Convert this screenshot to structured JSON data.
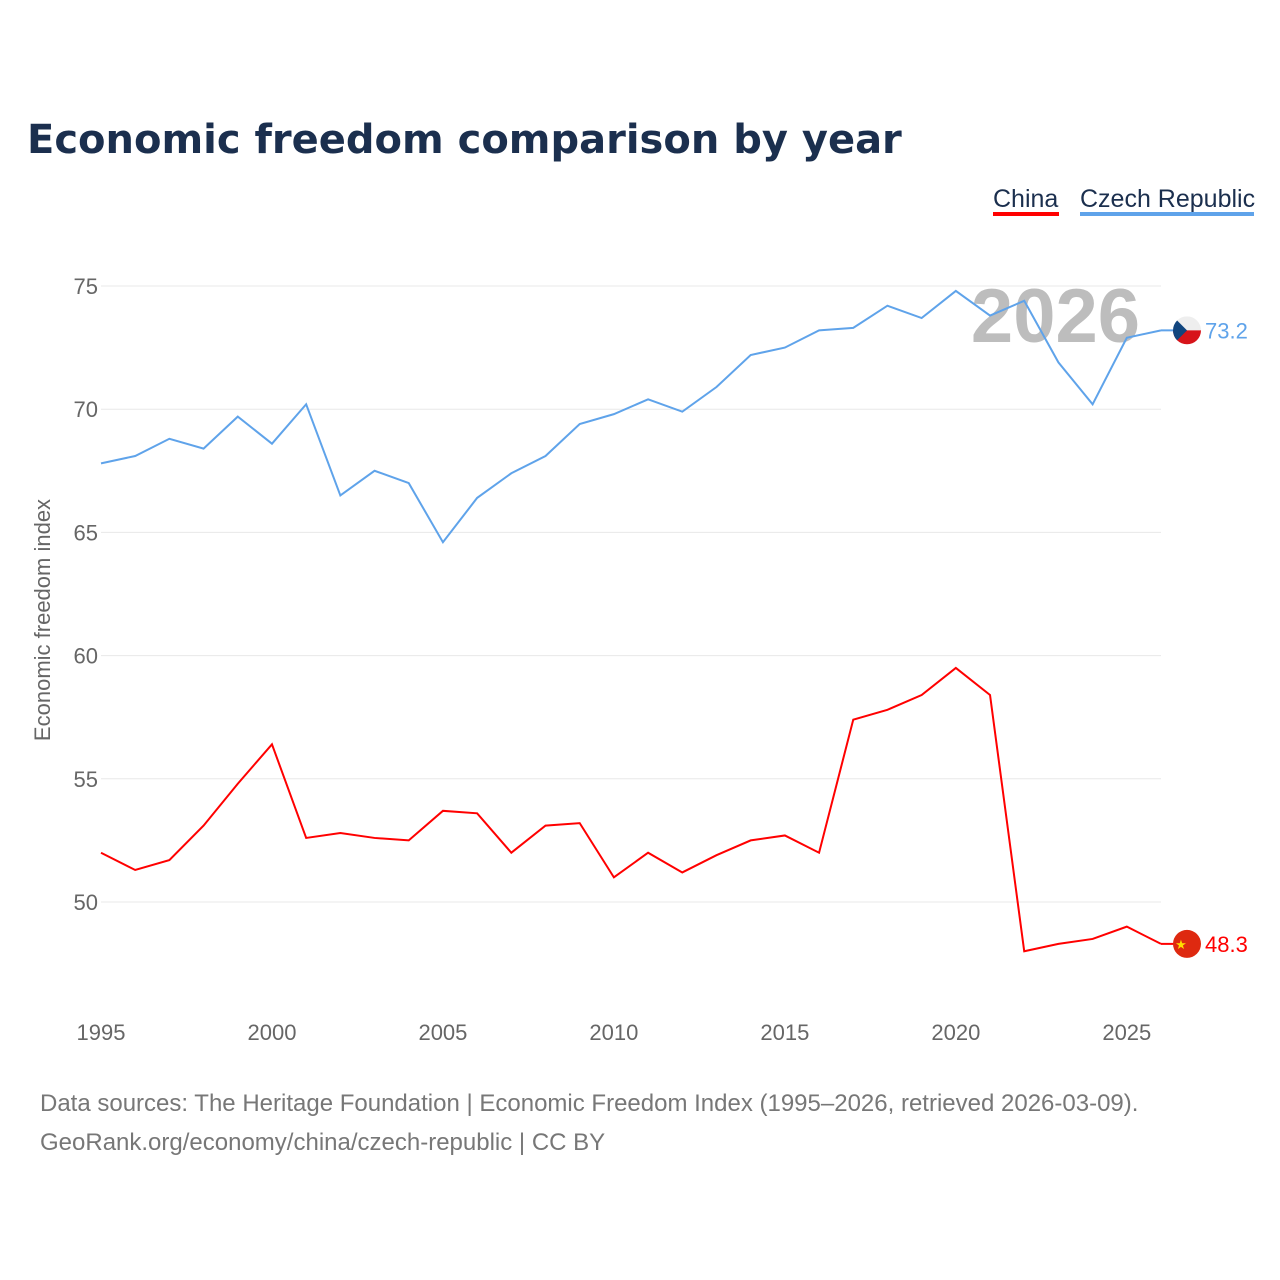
{
  "chart_data": {
    "type": "line",
    "title": "Economic freedom comparison by year",
    "xlabel": "",
    "ylabel": "Economic freedom index",
    "xlim": [
      1995,
      2026
    ],
    "ylim": [
      45.5,
      77
    ],
    "yticks": [
      50,
      55,
      60,
      65,
      70,
      75
    ],
    "xticks": [
      1995,
      2000,
      2005,
      2010,
      2015,
      2020,
      2025
    ],
    "grid": true,
    "legend_placement": "top-right",
    "watermark_year": "2026",
    "x": [
      1995,
      1996,
      1997,
      1998,
      1999,
      2000,
      2001,
      2002,
      2003,
      2004,
      2005,
      2006,
      2007,
      2008,
      2009,
      2010,
      2011,
      2012,
      2013,
      2014,
      2015,
      2016,
      2017,
      2018,
      2019,
      2020,
      2021,
      2022,
      2023,
      2024,
      2025,
      2026
    ],
    "series": [
      {
        "name": "China",
        "color": "#ff0000",
        "end_label": "48.3",
        "values": [
          52.0,
          51.3,
          51.7,
          53.1,
          54.8,
          56.4,
          52.6,
          52.8,
          52.6,
          52.5,
          53.7,
          53.6,
          52.0,
          53.1,
          53.2,
          51.0,
          52.0,
          51.2,
          51.9,
          52.5,
          52.7,
          52.0,
          57.4,
          57.8,
          58.4,
          59.5,
          58.4,
          48.0,
          48.3,
          48.5,
          49.0,
          48.3
        ]
      },
      {
        "name": "Czech Republic",
        "color": "#5fa3ea",
        "end_label": "73.2",
        "values": [
          67.8,
          68.1,
          68.8,
          68.4,
          69.7,
          68.6,
          70.2,
          66.5,
          67.5,
          67.0,
          64.6,
          66.4,
          67.4,
          68.1,
          69.4,
          69.8,
          70.4,
          69.9,
          70.9,
          72.2,
          72.5,
          73.2,
          73.3,
          74.2,
          73.7,
          74.8,
          73.8,
          74.4,
          71.9,
          70.2,
          72.9,
          73.2
        ]
      }
    ]
  },
  "source_line1": "Data sources: The Heritage Foundation | Economic Freedom Index (1995–2026, retrieved 2026-03-09).",
  "source_line2": "GeoRank.org/economy/china/czech-republic | CC BY"
}
